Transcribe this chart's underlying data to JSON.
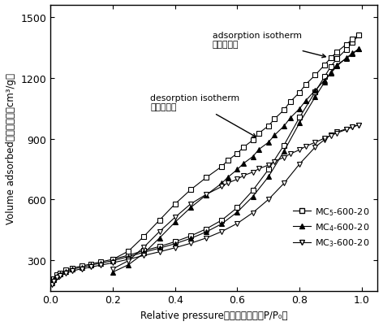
{
  "xlim": [
    0.0,
    1.05
  ],
  "ylim": [
    150,
    1560
  ],
  "yticks": [
    300,
    600,
    900,
    1200,
    1500
  ],
  "xticks": [
    0.0,
    0.2,
    0.4,
    0.6,
    0.8,
    1.0
  ],
  "bg_color": "#ffffff",
  "MC5_ads_x": [
    0.005,
    0.01,
    0.02,
    0.03,
    0.05,
    0.07,
    0.1,
    0.13,
    0.16,
    0.2,
    0.25,
    0.3,
    0.35,
    0.4,
    0.45,
    0.5,
    0.55,
    0.6,
    0.65,
    0.7,
    0.75,
    0.8,
    0.85,
    0.88,
    0.9,
    0.92,
    0.95,
    0.97,
    0.99
  ],
  "MC5_ads_y": [
    195,
    210,
    228,
    238,
    252,
    262,
    272,
    282,
    292,
    305,
    325,
    348,
    368,
    392,
    420,
    455,
    498,
    560,
    645,
    748,
    868,
    1005,
    1130,
    1205,
    1255,
    1295,
    1340,
    1375,
    1410
  ],
  "MC5_des_x": [
    0.99,
    0.97,
    0.95,
    0.92,
    0.9,
    0.88,
    0.85,
    0.82,
    0.8,
    0.77,
    0.75,
    0.72,
    0.7,
    0.67,
    0.65,
    0.62,
    0.6,
    0.57,
    0.55,
    0.5,
    0.45,
    0.4,
    0.35,
    0.3,
    0.25,
    0.2
  ],
  "MC5_des_y": [
    1410,
    1390,
    1365,
    1328,
    1298,
    1263,
    1213,
    1168,
    1128,
    1082,
    1042,
    998,
    963,
    928,
    893,
    858,
    828,
    793,
    763,
    708,
    648,
    578,
    498,
    418,
    345,
    305
  ],
  "MC4_ads_x": [
    0.005,
    0.01,
    0.02,
    0.03,
    0.05,
    0.07,
    0.1,
    0.13,
    0.16,
    0.2,
    0.25,
    0.3,
    0.35,
    0.4,
    0.45,
    0.5,
    0.55,
    0.6,
    0.65,
    0.7,
    0.75,
    0.8,
    0.85,
    0.88,
    0.9,
    0.92,
    0.95,
    0.97,
    0.99
  ],
  "MC4_ads_y": [
    190,
    205,
    222,
    232,
    246,
    256,
    266,
    276,
    286,
    298,
    318,
    340,
    360,
    382,
    408,
    440,
    480,
    538,
    615,
    712,
    838,
    978,
    1105,
    1178,
    1228,
    1265,
    1295,
    1318,
    1342
  ],
  "MC4_des_x": [
    0.99,
    0.97,
    0.95,
    0.92,
    0.9,
    0.88,
    0.85,
    0.82,
    0.8,
    0.77,
    0.75,
    0.72,
    0.7,
    0.67,
    0.65,
    0.62,
    0.6,
    0.57,
    0.55,
    0.5,
    0.45,
    0.4,
    0.35,
    0.3,
    0.25,
    0.2
  ],
  "MC4_des_y": [
    1342,
    1322,
    1298,
    1258,
    1222,
    1188,
    1138,
    1088,
    1048,
    1002,
    962,
    918,
    882,
    848,
    812,
    778,
    748,
    710,
    680,
    622,
    560,
    488,
    410,
    335,
    278,
    242
  ],
  "MC3_ads_x": [
    0.005,
    0.01,
    0.02,
    0.03,
    0.05,
    0.07,
    0.1,
    0.13,
    0.16,
    0.2,
    0.25,
    0.3,
    0.35,
    0.4,
    0.45,
    0.5,
    0.55,
    0.6,
    0.65,
    0.7,
    0.75,
    0.8,
    0.85,
    0.88,
    0.9,
    0.92,
    0.95,
    0.97,
    0.99
  ],
  "MC3_ads_y": [
    182,
    198,
    215,
    225,
    238,
    248,
    258,
    267,
    276,
    288,
    305,
    324,
    342,
    362,
    384,
    410,
    442,
    482,
    535,
    600,
    680,
    775,
    858,
    895,
    918,
    933,
    948,
    958,
    968
  ],
  "MC3_des_x": [
    0.99,
    0.97,
    0.95,
    0.92,
    0.9,
    0.88,
    0.85,
    0.82,
    0.8,
    0.77,
    0.75,
    0.72,
    0.7,
    0.67,
    0.65,
    0.62,
    0.6,
    0.57,
    0.55,
    0.5,
    0.45,
    0.4,
    0.35,
    0.3,
    0.25,
    0.2
  ],
  "MC3_des_y": [
    968,
    958,
    945,
    928,
    915,
    902,
    882,
    862,
    845,
    825,
    808,
    788,
    770,
    752,
    735,
    718,
    700,
    682,
    664,
    625,
    578,
    512,
    442,
    365,
    298,
    258
  ]
}
